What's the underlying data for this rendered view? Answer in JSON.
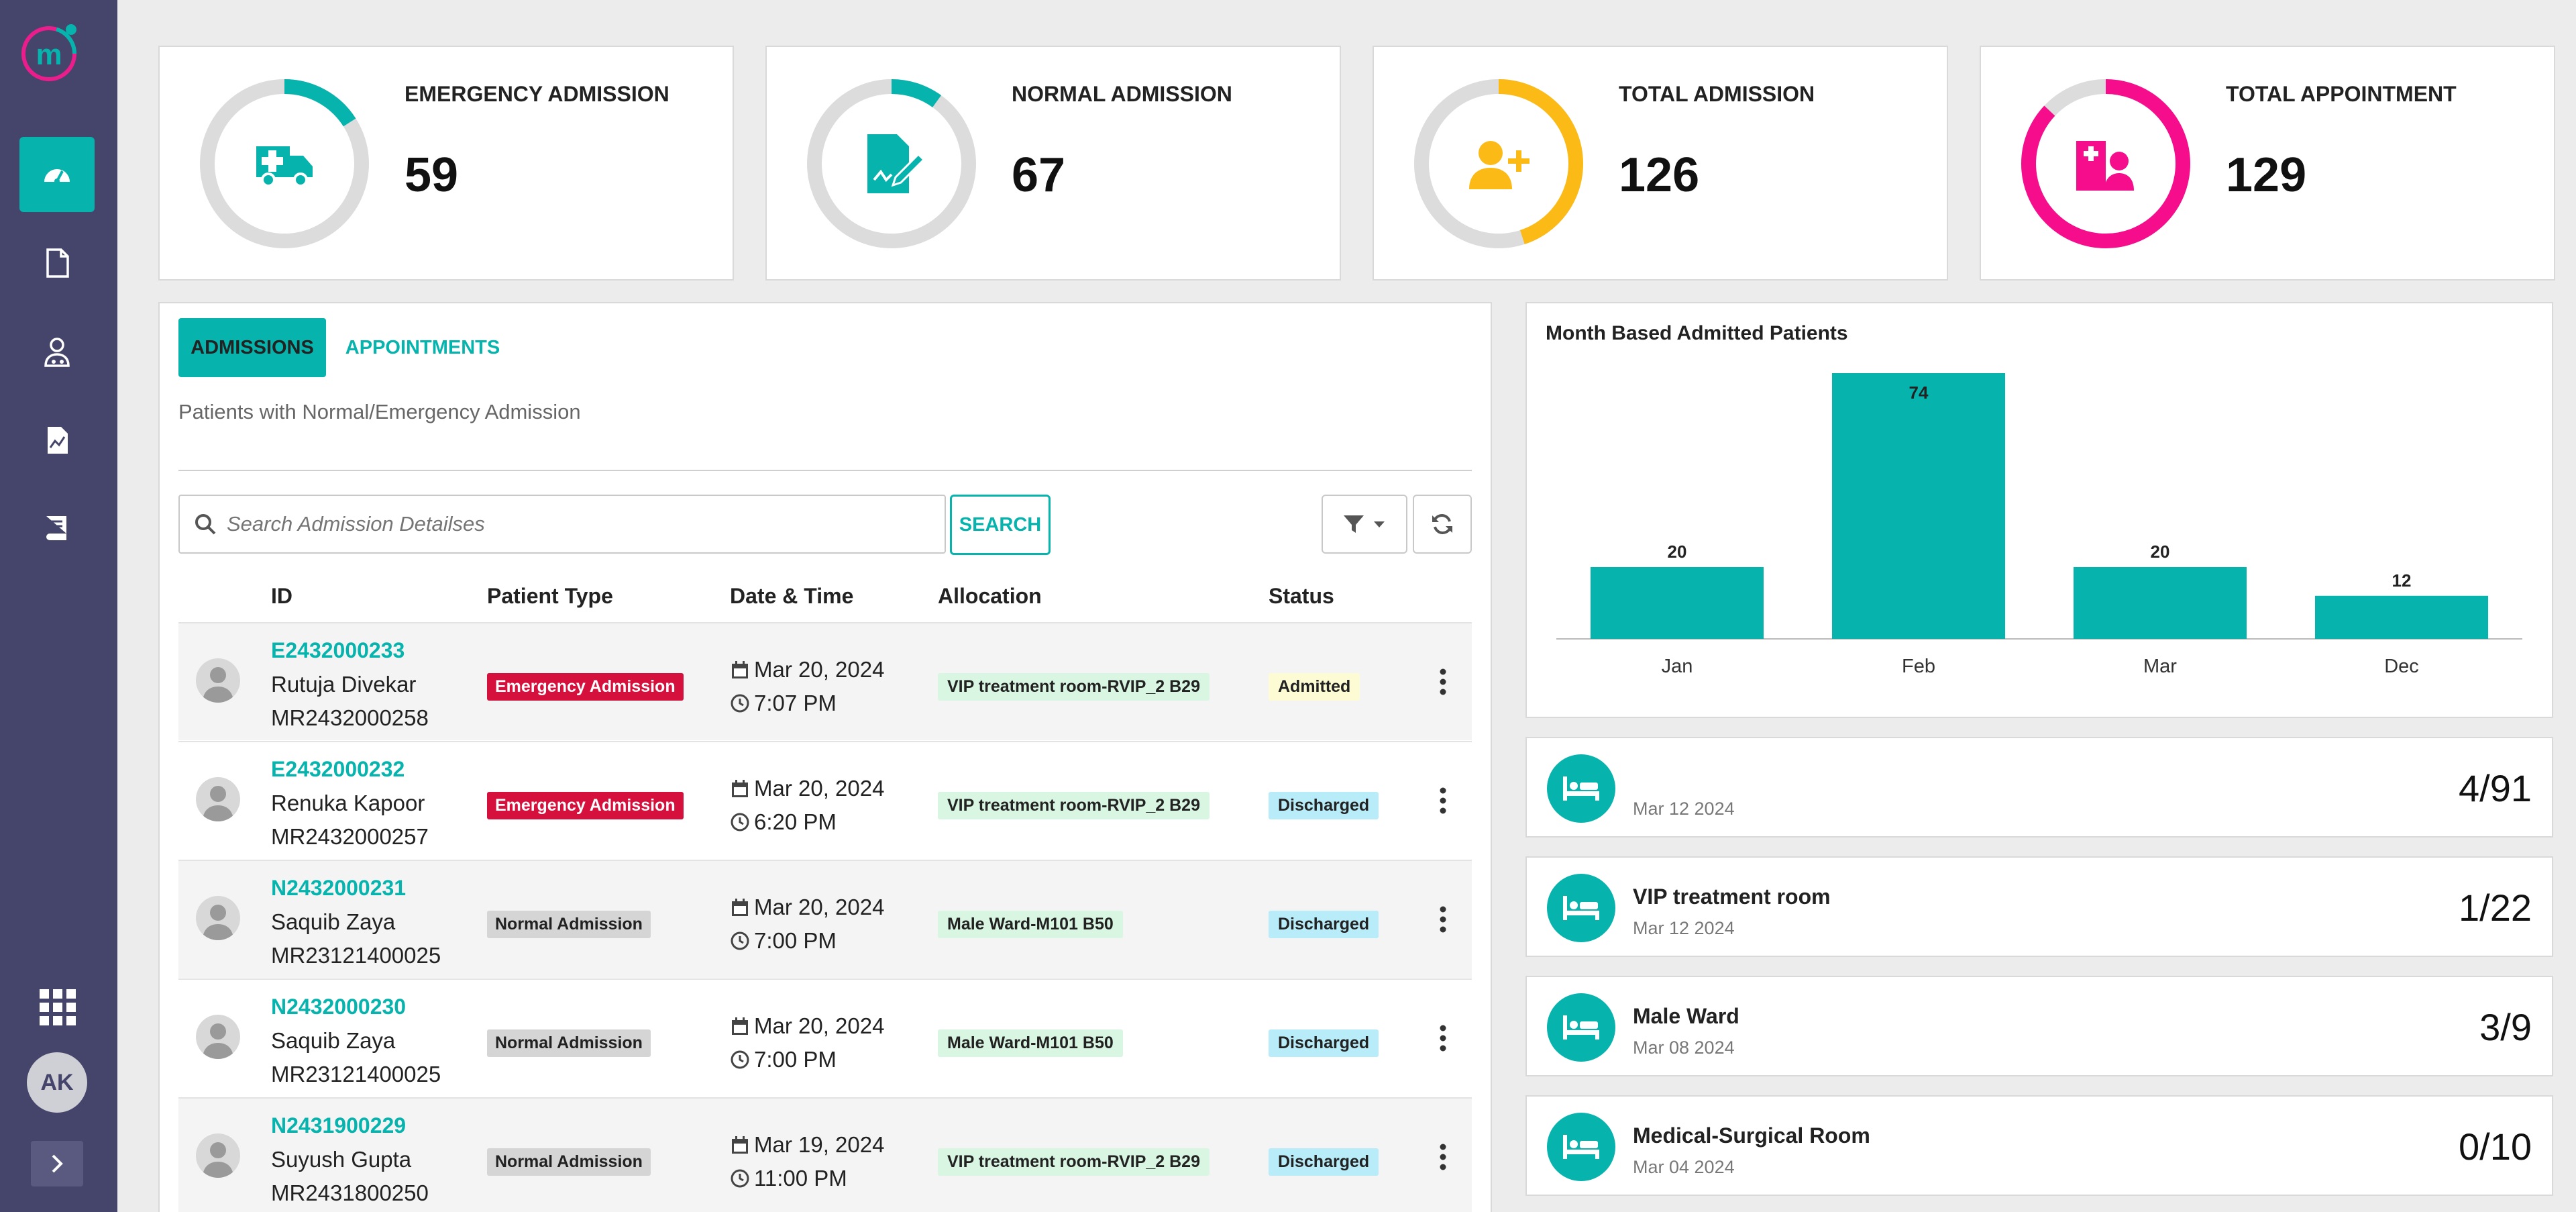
{
  "sidebar": {
    "avatar_initials": "AK",
    "nav": [
      "dashboard",
      "documents",
      "doctors",
      "reports",
      "book"
    ]
  },
  "stats": [
    {
      "label": "EMERGENCY ADMISSION",
      "value": "59",
      "color": "#07b3ad",
      "ratio": 0.16,
      "icon": "ambulance-icon"
    },
    {
      "label": "NORMAL ADMISSION",
      "value": "67",
      "color": "#07b3ad",
      "ratio": 0.1,
      "icon": "document-sign-icon"
    },
    {
      "label": "TOTAL ADMISSION",
      "value": "126",
      "color": "#fcba16",
      "ratio": 0.45,
      "icon": "user-plus-icon"
    },
    {
      "label": "TOTAL APPOINTMENT",
      "value": "129",
      "color": "#f50d8b",
      "ratio": 0.87,
      "icon": "hospital-user-icon"
    }
  ],
  "tabs": {
    "admissions": "ADMISSIONS",
    "appointments": "APPOINTMENTS"
  },
  "subtitle": "Patients with Normal/Emergency Admission",
  "search": {
    "placeholder": "Search Admission Detailses",
    "button": "SEARCH"
  },
  "table": {
    "headers": {
      "id": "ID",
      "ptype": "Patient Type",
      "datetime": "Date & Time",
      "allocation": "Allocation",
      "status": "Status"
    },
    "rows": [
      {
        "id": "E2432000233",
        "name": "Rutuja Divekar",
        "mr": "MR2432000258",
        "type": "Emergency Admission",
        "date": "Mar 20, 2024",
        "time": "7:07 PM",
        "allocation": "VIP treatment room-RVIP_2 B29",
        "status": "Admitted"
      },
      {
        "id": "E2432000232",
        "name": "Renuka Kapoor",
        "mr": "MR2432000257",
        "type": "Emergency Admission",
        "date": "Mar 20, 2024",
        "time": "6:20 PM",
        "allocation": "VIP treatment room-RVIP_2 B29",
        "status": "Discharged"
      },
      {
        "id": "N2432000231",
        "name": "Saquib Zaya",
        "mr": "MR23121400025",
        "type": "Normal Admission",
        "date": "Mar 20, 2024",
        "time": "7:00 PM",
        "allocation": "Male Ward-M101 B50",
        "status": "Discharged"
      },
      {
        "id": "N2432000230",
        "name": "Saquib Zaya",
        "mr": "MR23121400025",
        "type": "Normal Admission",
        "date": "Mar 20, 2024",
        "time": "7:00 PM",
        "allocation": "Male Ward-M101 B50",
        "status": "Discharged"
      },
      {
        "id": "N2431900229",
        "name": "Suyush Gupta",
        "mr": "MR2431800250",
        "type": "Normal Admission",
        "date": "Mar 19, 2024",
        "time": "11:00 PM",
        "allocation": "VIP treatment room-RVIP_2 B29",
        "status": "Discharged"
      }
    ]
  },
  "chart_title": "Month Based Admitted Patients",
  "chart_data": {
    "type": "bar",
    "title": "Month Based Admitted Patients",
    "categories": [
      "Jan",
      "Feb",
      "Mar",
      "Dec"
    ],
    "values": [
      20,
      74,
      20,
      12
    ],
    "xlabel": "",
    "ylabel": "",
    "ylim": [
      0,
      74
    ],
    "color": "#07b3ad",
    "grid": false,
    "data_labels": true
  },
  "wards": [
    {
      "name": "",
      "date": "Mar 12 2024",
      "count": "4/91"
    },
    {
      "name": "VIP treatment room",
      "date": "Mar 12 2024",
      "count": "1/22"
    },
    {
      "name": "Male Ward",
      "date": "Mar 08 2024",
      "count": "3/9"
    },
    {
      "name": "Medical-Surgical Room",
      "date": "Mar 04 2024",
      "count": "0/10"
    }
  ],
  "colors": {
    "accent": "#07b3ad",
    "sidebar": "#45446a",
    "emergency": "#d6103c"
  }
}
